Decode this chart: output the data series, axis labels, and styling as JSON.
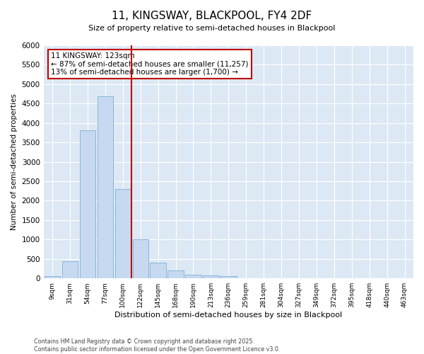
{
  "title": "11, KINGSWAY, BLACKPOOL, FY4 2DF",
  "subtitle": "Size of property relative to semi-detached houses in Blackpool",
  "xlabel": "Distribution of semi-detached houses by size in Blackpool",
  "ylabel": "Number of semi-detached properties",
  "categories": [
    "9sqm",
    "31sqm",
    "54sqm",
    "77sqm",
    "100sqm",
    "122sqm",
    "145sqm",
    "168sqm",
    "190sqm",
    "213sqm",
    "236sqm",
    "259sqm",
    "281sqm",
    "304sqm",
    "327sqm",
    "349sqm",
    "372sqm",
    "395sqm",
    "418sqm",
    "440sqm",
    "463sqm"
  ],
  "values": [
    50,
    440,
    3820,
    4680,
    2300,
    1000,
    400,
    200,
    90,
    70,
    60,
    0,
    0,
    0,
    0,
    0,
    0,
    0,
    0,
    0,
    0
  ],
  "bar_color": "#c6d9f0",
  "bar_edge_color": "#7bafd4",
  "vline_index": 5,
  "vline_color": "#c00000",
  "annotation_text": "11 KINGSWAY: 123sqm\n← 87% of semi-detached houses are smaller (11,257)\n13% of semi-detached houses are larger (1,700) →",
  "annotation_box_color": "#c00000",
  "bg_color": "#dde8f5",
  "grid_color": "#ffffff",
  "footer": "Contains HM Land Registry data © Crown copyright and database right 2025.\nContains public sector information licensed under the Open Government Licence v3.0.",
  "ylim": [
    0,
    6000
  ],
  "yticks": [
    0,
    500,
    1000,
    1500,
    2000,
    2500,
    3000,
    3500,
    4000,
    4500,
    5000,
    5500,
    6000
  ]
}
